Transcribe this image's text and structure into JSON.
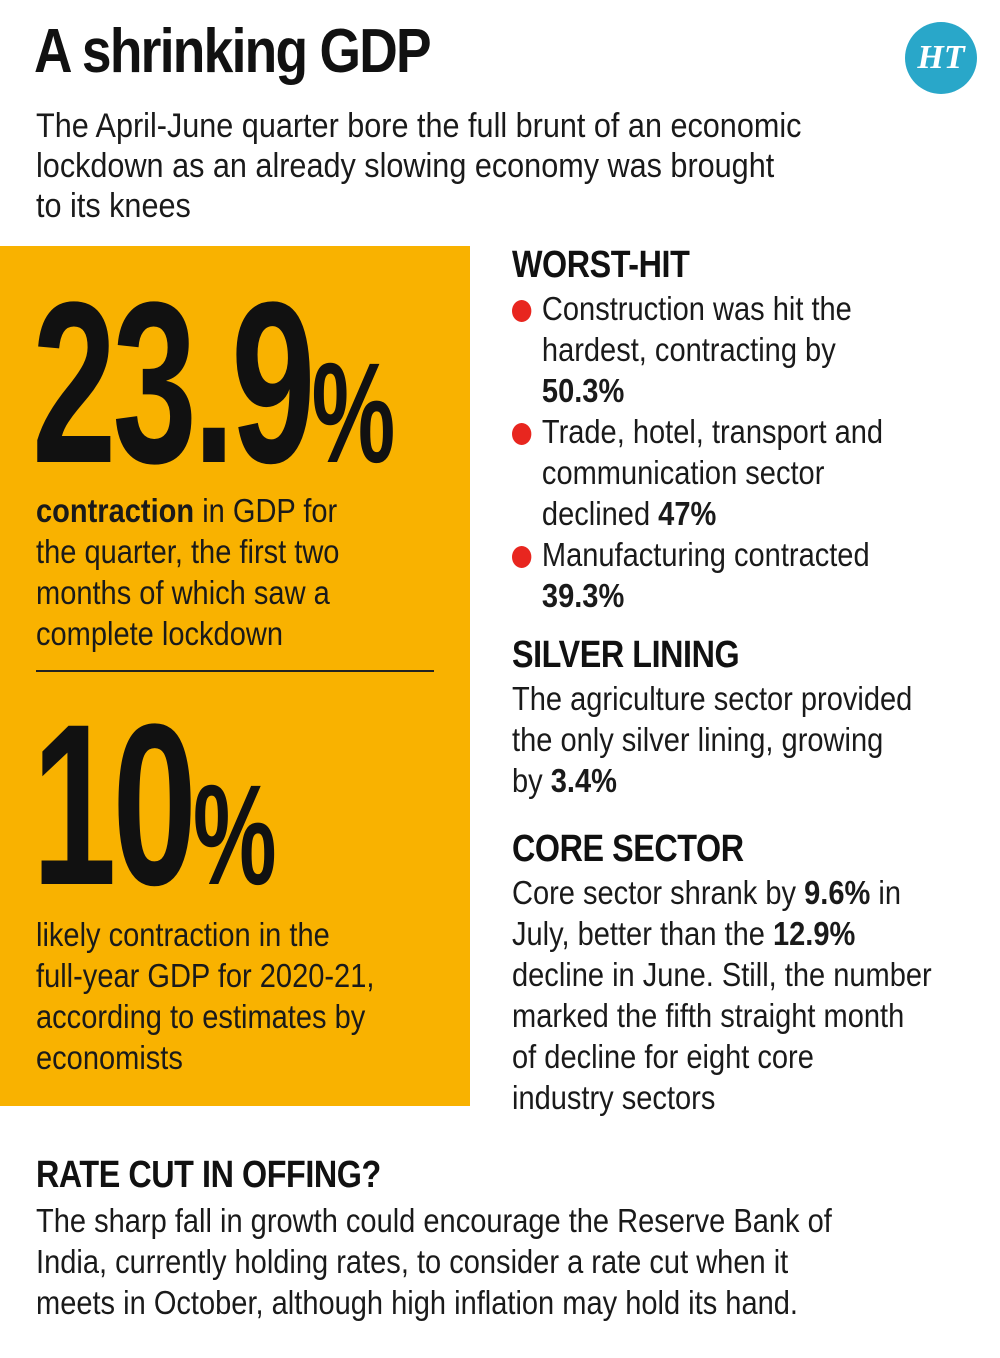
{
  "header": {
    "title": "A shrinking GDP",
    "logo_text": "HT",
    "subtitle_line1": "The April-June quarter bore the full brunt of an economic",
    "subtitle_line2": "lockdown as an already slowing economy was brought",
    "subtitle_line3": "to its knees"
  },
  "stat1": {
    "value": "23.9",
    "unit": "%",
    "bold_lead": "contraction",
    "line1_rest": " in GDP for",
    "line2": "the quarter, the first two",
    "line3": "months of which saw a",
    "line4": "complete lockdown"
  },
  "stat2": {
    "value": "10",
    "unit": "%",
    "line1": "likely contraction in the",
    "line2": "full-year GDP for 2020-21,",
    "line3": "according to estimates by",
    "line4": "economists"
  },
  "worst_hit": {
    "heading": "WORST-HIT",
    "items": [
      {
        "line1": "Construction was hit the",
        "line2": "hardest, contracting by",
        "value": "50.3%"
      },
      {
        "line1": "Trade, hotel, transport and",
        "line2": "communication sector",
        "line3_prefix": "declined ",
        "value": "47%"
      },
      {
        "line1": "Manufacturing contracted",
        "value": "39.3%"
      }
    ]
  },
  "silver_lining": {
    "heading": "SILVER LINING",
    "line1": "The agriculture sector provided",
    "line2": "the only silver lining, growing",
    "line3_prefix": "by ",
    "value": "3.4%"
  },
  "core_sector": {
    "heading": "CORE SECTOR",
    "line1_prefix": "Core sector shrank by ",
    "value1": "9.6%",
    "line1_suffix": " in",
    "line2_prefix": "July, better than the ",
    "value2": "12.9%",
    "line3": "decline in June. Still, the number",
    "line4": "marked the fifth straight month",
    "line5": "of decline for eight core",
    "line6": "industry sectors"
  },
  "rate_cut": {
    "heading": "RATE CUT IN OFFING?",
    "line1": "The sharp fall in growth could encourage the Reserve Bank of",
    "line2": "India, currently holding rates, to consider a rate cut when it",
    "line3": "meets in October, although high inflation may hold its hand."
  },
  "colors": {
    "accent_yellow": "#f9b200",
    "bullet_red": "#e8261f",
    "logo_blue": "#29a7c9"
  }
}
